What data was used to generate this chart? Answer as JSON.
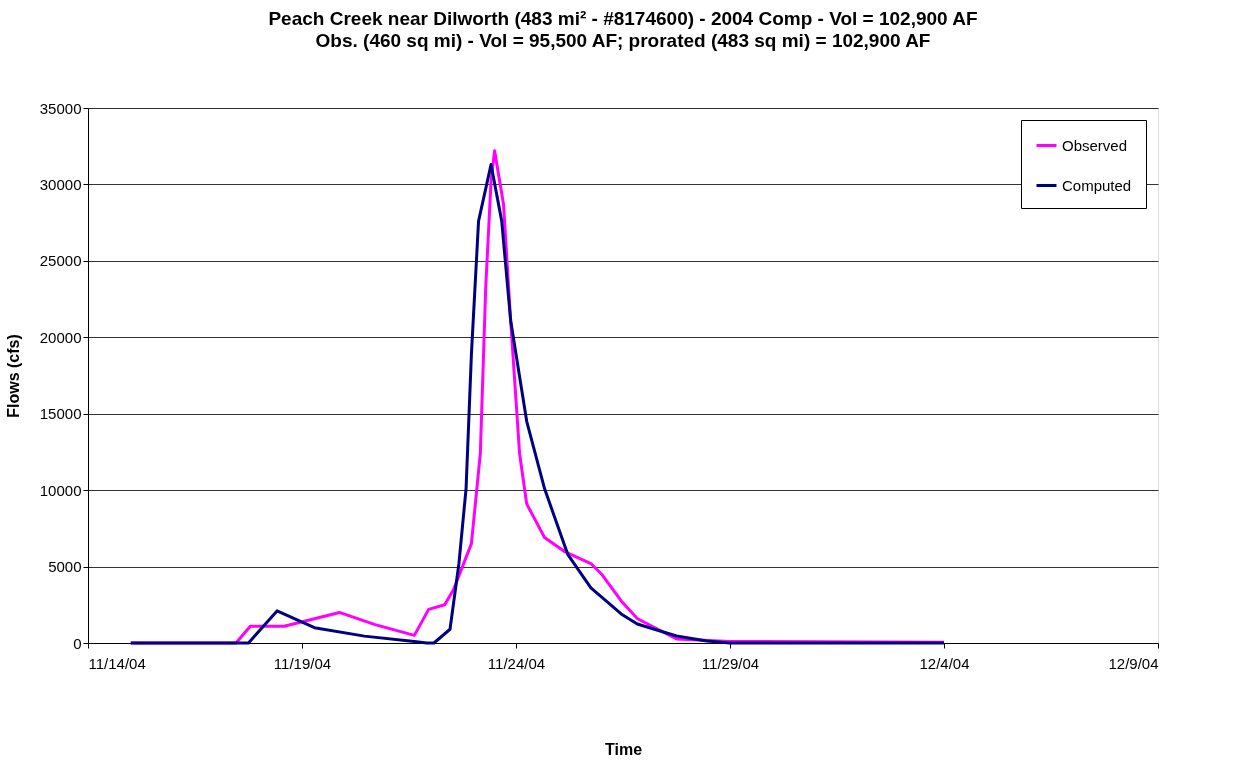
{
  "chart_data": {
    "type": "line",
    "title": "Peach Creek near Dilworth (483 mi² - #8174600) - 2004 Comp - Vol = 102,900 AF",
    "subtitle": "Obs. (460 sq mi) - Vol = 95,500 AF; prorated  (483 sq mi) = 102,900 AF",
    "xlabel": "Time",
    "ylabel": "Flows (cfs)",
    "xlim": [
      "2004-11-14",
      "2004-12-09"
    ],
    "xticks": [
      {
        "value": "2004-11-14",
        "label": "11/14/04"
      },
      {
        "value": "2004-11-19",
        "label": "11/19/04"
      },
      {
        "value": "2004-11-24",
        "label": "11/24/04"
      },
      {
        "value": "2004-11-29",
        "label": "11/29/04"
      },
      {
        "value": "2004-12-04",
        "label": "12/4/04"
      },
      {
        "value": "2004-12-09",
        "label": "12/9/04"
      }
    ],
    "ylim": [
      0,
      35000
    ],
    "yticks": [
      0,
      5000,
      10000,
      15000,
      20000,
      25000,
      30000,
      35000
    ],
    "grid": "y",
    "legend": "top right",
    "series": [
      {
        "name": "Observed",
        "color": "#ff00ff",
        "x": [
          "2004-11-15T00:00",
          "2004-11-17T11:00",
          "2004-11-17T19:00",
          "2004-11-18T14:00",
          "2004-11-19T21:00",
          "2004-11-20T17:00",
          "2004-11-21T15:00",
          "2004-11-21T23:00",
          "2004-11-22T08:00",
          "2004-11-22T13:00",
          "2004-11-22T23:00",
          "2004-11-23T04:00",
          "2004-11-23T07:00",
          "2004-11-23T10:00",
          "2004-11-23T12:00",
          "2004-11-23T17:00",
          "2004-11-23T21:00",
          "2004-11-24T02:00",
          "2004-11-24T06:00",
          "2004-11-24T16:00",
          "2004-11-25T03:00",
          "2004-11-25T18:00",
          "2004-11-26T00:00",
          "2004-11-26T11:00",
          "2004-11-26T20:00",
          "2004-11-27T18:00",
          "2004-11-29T00:00",
          "2004-12-04T00:00"
        ],
        "values": [
          0,
          0,
          1100,
          1100,
          2000,
          1200,
          500,
          2200,
          2500,
          3500,
          6500,
          12400,
          23200,
          30200,
          32200,
          28700,
          21100,
          12400,
          9100,
          6900,
          6000,
          5200,
          4500,
          2750,
          1600,
          260,
          100,
          50
        ]
      },
      {
        "name": "Computed",
        "color": "#000080",
        "x": [
          "2004-11-15T00:00",
          "2004-11-17T18:00",
          "2004-11-18T10:00",
          "2004-11-19T07:00",
          "2004-11-20T11:00",
          "2004-11-21T15:00",
          "2004-11-21T22:00",
          "2004-11-22T02:00",
          "2004-11-22T11:00",
          "2004-11-22T16:00",
          "2004-11-22T20:00",
          "2004-11-22T23:00",
          "2004-11-23T03:00",
          "2004-11-23T10:00",
          "2004-11-23T16:00",
          "2004-11-23T21:00",
          "2004-11-24T06:00",
          "2004-11-24T16:00",
          "2004-11-25T05:00",
          "2004-11-25T18:00",
          "2004-11-26T11:00",
          "2004-11-26T20:00",
          "2004-11-27T18:00",
          "2004-11-28T11:00",
          "2004-11-29T00:00",
          "2004-12-04T00:00"
        ],
        "values": [
          0,
          0,
          2100,
          1000,
          450,
          100,
          0,
          0,
          900,
          5200,
          10100,
          18900,
          27600,
          31300,
          27600,
          21100,
          14500,
          10100,
          5800,
          3600,
          1900,
          1240,
          460,
          130,
          0,
          0
        ]
      }
    ]
  }
}
